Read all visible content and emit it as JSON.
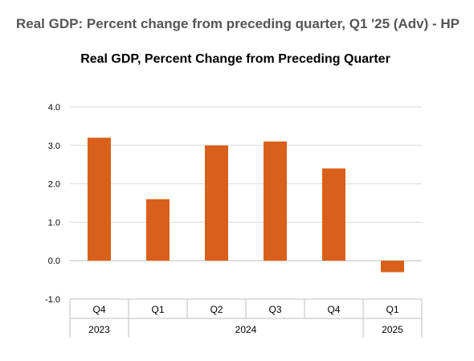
{
  "page": {
    "title": "Real GDP: Percent change from preceding quarter, Q1 '25 (Adv) - HP"
  },
  "colors": {
    "bar": "#d9601a",
    "grid": "#d9d9d9",
    "axis": "#bfbfbf"
  },
  "chart_data": {
    "type": "bar",
    "title": "Real GDP, Percent Change from Preceding Quarter",
    "xlabel": "",
    "ylabel": "",
    "ylim": [
      -1.0,
      4.0
    ],
    "yticks": [
      "4.0",
      "3.0",
      "2.0",
      "1.0",
      "0.0",
      "-1.0"
    ],
    "grid": true,
    "categories": [
      "Q4",
      "Q1",
      "Q2",
      "Q3",
      "Q4",
      "Q1"
    ],
    "values": [
      3.2,
      1.6,
      3.0,
      3.1,
      2.4,
      -0.3
    ],
    "years": [
      {
        "label": "2023",
        "span": 1
      },
      {
        "label": "2024",
        "span": 4
      },
      {
        "label": "2025",
        "span": 1
      }
    ]
  }
}
